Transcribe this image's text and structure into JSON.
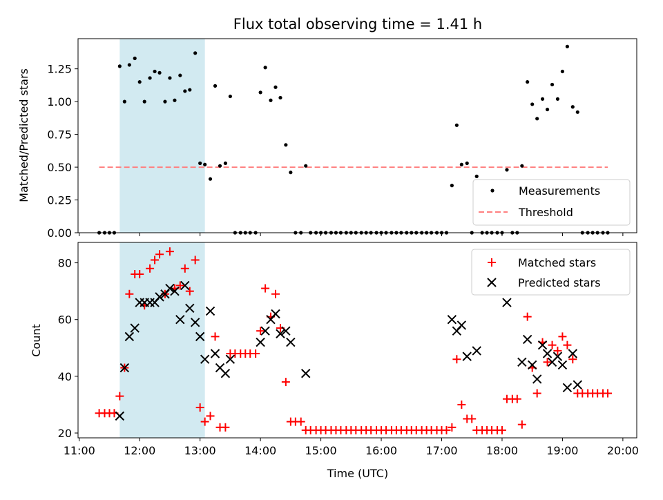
{
  "chart_data": [
    {
      "type": "scatter",
      "title": "Flux total observing time = 1.41 h",
      "ylabel": "Matched/Predicted stars",
      "xlabel": "",
      "x_unit": "hour (UTC)",
      "xlim": [
        10.98,
        20.23
      ],
      "ylim": [
        0.0,
        1.48
      ],
      "yticks": [
        "0.00",
        "0.25",
        "0.50",
        "0.75",
        "1.00",
        "1.25"
      ],
      "ytick_values": [
        0.0,
        0.25,
        0.5,
        0.75,
        1.0,
        1.25
      ],
      "xticks_shown": false,
      "grid": false,
      "legend": {
        "placement": "bottom-right",
        "entries": [
          "Measurements",
          "Threshold"
        ]
      },
      "shaded_span": {
        "x_start": 11.67,
        "x_end": 13.08,
        "color": "#add8e6"
      },
      "threshold": {
        "name": "Threshold",
        "y": 0.5,
        "x_start": 11.33,
        "x_end": 19.75,
        "color": "#ff7f7f",
        "style": "dashed"
      },
      "series": [
        {
          "name": "Measurements",
          "color": "#000000",
          "marker": "dot",
          "points": [
            [
              11.33,
              0
            ],
            [
              11.42,
              0
            ],
            [
              11.5,
              0
            ],
            [
              11.58,
              0
            ],
            [
              11.67,
              1.27
            ],
            [
              11.75,
              1.0
            ],
            [
              11.83,
              1.28
            ],
            [
              11.92,
              1.33
            ],
            [
              12.0,
              1.15
            ],
            [
              12.08,
              1.0
            ],
            [
              12.17,
              1.18
            ],
            [
              12.25,
              1.23
            ],
            [
              12.33,
              1.22
            ],
            [
              12.42,
              1.0
            ],
            [
              12.5,
              1.18
            ],
            [
              12.58,
              1.01
            ],
            [
              12.67,
              1.2
            ],
            [
              12.75,
              1.08
            ],
            [
              12.83,
              1.09
            ],
            [
              12.92,
              1.37
            ],
            [
              13.0,
              0.53
            ],
            [
              13.08,
              0.52
            ],
            [
              13.17,
              0.41
            ],
            [
              13.25,
              1.12
            ],
            [
              13.33,
              0.51
            ],
            [
              13.42,
              0.53
            ],
            [
              13.5,
              1.04
            ],
            [
              13.58,
              0
            ],
            [
              13.67,
              0
            ],
            [
              13.75,
              0
            ],
            [
              13.83,
              0
            ],
            [
              13.92,
              0
            ],
            [
              14.0,
              1.07
            ],
            [
              14.08,
              1.26
            ],
            [
              14.17,
              1.01
            ],
            [
              14.25,
              1.11
            ],
            [
              14.33,
              1.03
            ],
            [
              14.42,
              0.67
            ],
            [
              14.5,
              0.46
            ],
            [
              14.58,
              0
            ],
            [
              14.67,
              0
            ],
            [
              14.75,
              0.51
            ],
            [
              14.83,
              0
            ],
            [
              14.92,
              0
            ],
            [
              15.0,
              0
            ],
            [
              15.08,
              0
            ],
            [
              15.17,
              0
            ],
            [
              15.25,
              0
            ],
            [
              15.33,
              0
            ],
            [
              15.42,
              0
            ],
            [
              15.5,
              0
            ],
            [
              15.58,
              0
            ],
            [
              15.67,
              0
            ],
            [
              15.75,
              0
            ],
            [
              15.83,
              0
            ],
            [
              15.92,
              0
            ],
            [
              16.0,
              0
            ],
            [
              16.08,
              0
            ],
            [
              16.17,
              0
            ],
            [
              16.25,
              0
            ],
            [
              16.33,
              0
            ],
            [
              16.42,
              0
            ],
            [
              16.5,
              0
            ],
            [
              16.58,
              0
            ],
            [
              16.67,
              0
            ],
            [
              16.75,
              0
            ],
            [
              16.83,
              0
            ],
            [
              16.92,
              0
            ],
            [
              17.0,
              0
            ],
            [
              17.08,
              0
            ],
            [
              17.17,
              0.36
            ],
            [
              17.25,
              0.82
            ],
            [
              17.33,
              0.52
            ],
            [
              17.42,
              0.53
            ],
            [
              17.5,
              0
            ],
            [
              17.58,
              0.43
            ],
            [
              17.67,
              0
            ],
            [
              17.75,
              0
            ],
            [
              17.83,
              0
            ],
            [
              17.92,
              0
            ],
            [
              18.0,
              0
            ],
            [
              18.08,
              0.48
            ],
            [
              18.17,
              0
            ],
            [
              18.25,
              0
            ],
            [
              18.33,
              0.51
            ],
            [
              18.42,
              1.15
            ],
            [
              18.5,
              0.98
            ],
            [
              18.58,
              0.87
            ],
            [
              18.67,
              1.02
            ],
            [
              18.75,
              0.94
            ],
            [
              18.83,
              1.13
            ],
            [
              18.92,
              1.02
            ],
            [
              19.0,
              1.23
            ],
            [
              19.08,
              1.42
            ],
            [
              19.17,
              0.96
            ],
            [
              19.25,
              0.92
            ],
            [
              19.33,
              0
            ],
            [
              19.42,
              0
            ],
            [
              19.5,
              0
            ],
            [
              19.58,
              0
            ],
            [
              19.67,
              0
            ],
            [
              19.75,
              0
            ]
          ]
        }
      ]
    },
    {
      "type": "scatter",
      "title": "",
      "ylabel": "Count",
      "xlabel": "Time (UTC)",
      "x_unit": "hour (UTC)",
      "xlim": [
        10.98,
        20.23
      ],
      "ylim": [
        18.3,
        87.2
      ],
      "yticks": [
        "20",
        "40",
        "60",
        "80"
      ],
      "ytick_values": [
        20,
        40,
        60,
        80
      ],
      "xticks": [
        "11:00",
        "12:00",
        "13:00",
        "14:00",
        "15:00",
        "16:00",
        "17:00",
        "18:00",
        "19:00",
        "20:00"
      ],
      "xtick_values": [
        11,
        12,
        13,
        14,
        15,
        16,
        17,
        18,
        19,
        20
      ],
      "grid": false,
      "legend": {
        "placement": "top-right",
        "entries": [
          "Matched stars",
          "Predicted stars"
        ]
      },
      "shaded_span": {
        "x_start": 11.67,
        "x_end": 13.08,
        "color": "#add8e6"
      },
      "series": [
        {
          "name": "Matched stars",
          "color": "#ff0000",
          "marker": "plus",
          "points": [
            [
              11.33,
              27
            ],
            [
              11.42,
              27
            ],
            [
              11.5,
              27
            ],
            [
              11.58,
              27
            ],
            [
              11.67,
              33
            ],
            [
              11.75,
              43
            ],
            [
              11.83,
              69
            ],
            [
              11.92,
              76
            ],
            [
              12.0,
              76
            ],
            [
              12.08,
              65
            ],
            [
              12.17,
              78
            ],
            [
              12.25,
              81
            ],
            [
              12.33,
              83
            ],
            [
              12.42,
              69
            ],
            [
              12.5,
              84
            ],
            [
              12.58,
              71
            ],
            [
              12.67,
              72
            ],
            [
              12.75,
              78
            ],
            [
              12.83,
              70
            ],
            [
              12.92,
              81
            ],
            [
              13.0,
              29
            ],
            [
              13.08,
              24
            ],
            [
              13.17,
              26
            ],
            [
              13.25,
              54
            ],
            [
              13.33,
              22
            ],
            [
              13.42,
              22
            ],
            [
              13.5,
              48
            ],
            [
              13.58,
              48
            ],
            [
              13.67,
              48
            ],
            [
              13.75,
              48
            ],
            [
              13.83,
              48
            ],
            [
              13.92,
              48
            ],
            [
              14.0,
              56
            ],
            [
              14.08,
              71
            ],
            [
              14.17,
              61
            ],
            [
              14.25,
              69
            ],
            [
              14.33,
              57
            ],
            [
              14.42,
              38
            ],
            [
              14.5,
              24
            ],
            [
              14.58,
              24
            ],
            [
              14.67,
              24
            ],
            [
              14.75,
              21
            ],
            [
              14.83,
              21
            ],
            [
              14.92,
              21
            ],
            [
              15.0,
              21
            ],
            [
              15.08,
              21
            ],
            [
              15.17,
              21
            ],
            [
              15.25,
              21
            ],
            [
              15.33,
              21
            ],
            [
              15.42,
              21
            ],
            [
              15.5,
              21
            ],
            [
              15.58,
              21
            ],
            [
              15.67,
              21
            ],
            [
              15.75,
              21
            ],
            [
              15.83,
              21
            ],
            [
              15.92,
              21
            ],
            [
              16.0,
              21
            ],
            [
              16.08,
              21
            ],
            [
              16.17,
              21
            ],
            [
              16.25,
              21
            ],
            [
              16.33,
              21
            ],
            [
              16.42,
              21
            ],
            [
              16.5,
              21
            ],
            [
              16.58,
              21
            ],
            [
              16.67,
              21
            ],
            [
              16.75,
              21
            ],
            [
              16.83,
              21
            ],
            [
              16.92,
              21
            ],
            [
              17.0,
              21
            ],
            [
              17.08,
              21
            ],
            [
              17.17,
              22
            ],
            [
              17.25,
              46
            ],
            [
              17.33,
              30
            ],
            [
              17.42,
              25
            ],
            [
              17.5,
              25
            ],
            [
              17.58,
              21
            ],
            [
              17.67,
              21
            ],
            [
              17.75,
              21
            ],
            [
              17.83,
              21
            ],
            [
              17.92,
              21
            ],
            [
              18.0,
              21
            ],
            [
              18.08,
              32
            ],
            [
              18.17,
              32
            ],
            [
              18.25,
              32
            ],
            [
              18.33,
              23
            ],
            [
              18.42,
              61
            ],
            [
              18.5,
              43
            ],
            [
              18.58,
              34
            ],
            [
              18.67,
              52
            ],
            [
              18.75,
              45
            ],
            [
              18.83,
              51
            ],
            [
              18.92,
              49
            ],
            [
              19.0,
              54
            ],
            [
              19.08,
              51
            ],
            [
              19.17,
              46
            ],
            [
              19.25,
              34
            ],
            [
              19.33,
              34
            ],
            [
              19.42,
              34
            ],
            [
              19.5,
              34
            ],
            [
              19.58,
              34
            ],
            [
              19.67,
              34
            ],
            [
              19.75,
              34
            ]
          ]
        },
        {
          "name": "Predicted stars",
          "color": "#000000",
          "marker": "cross",
          "points": [
            [
              11.67,
              26
            ],
            [
              11.75,
              43
            ],
            [
              11.83,
              54
            ],
            [
              11.92,
              57
            ],
            [
              12.0,
              66
            ],
            [
              12.08,
              66
            ],
            [
              12.17,
              66
            ],
            [
              12.25,
              66
            ],
            [
              12.33,
              68
            ],
            [
              12.42,
              69
            ],
            [
              12.5,
              71
            ],
            [
              12.58,
              70
            ],
            [
              12.67,
              60
            ],
            [
              12.75,
              72
            ],
            [
              12.83,
              64
            ],
            [
              12.92,
              59
            ],
            [
              13.0,
              54
            ],
            [
              13.08,
              46
            ],
            [
              13.17,
              63
            ],
            [
              13.25,
              48
            ],
            [
              13.33,
              43
            ],
            [
              13.42,
              41
            ],
            [
              13.5,
              46
            ],
            [
              14.0,
              52
            ],
            [
              14.08,
              56
            ],
            [
              14.17,
              60
            ],
            [
              14.25,
              62
            ],
            [
              14.33,
              55
            ],
            [
              14.42,
              56
            ],
            [
              14.5,
              52
            ],
            [
              14.75,
              41
            ],
            [
              17.17,
              60
            ],
            [
              17.25,
              56
            ],
            [
              17.33,
              58
            ],
            [
              17.42,
              47
            ],
            [
              17.58,
              49
            ],
            [
              18.08,
              66
            ],
            [
              18.33,
              45
            ],
            [
              18.42,
              53
            ],
            [
              18.5,
              44
            ],
            [
              18.58,
              39
            ],
            [
              18.67,
              51
            ],
            [
              18.75,
              48
            ],
            [
              18.83,
              45
            ],
            [
              18.92,
              47
            ],
            [
              19.0,
              44
            ],
            [
              19.08,
              36
            ],
            [
              19.17,
              48
            ],
            [
              19.25,
              37
            ]
          ]
        }
      ]
    }
  ]
}
